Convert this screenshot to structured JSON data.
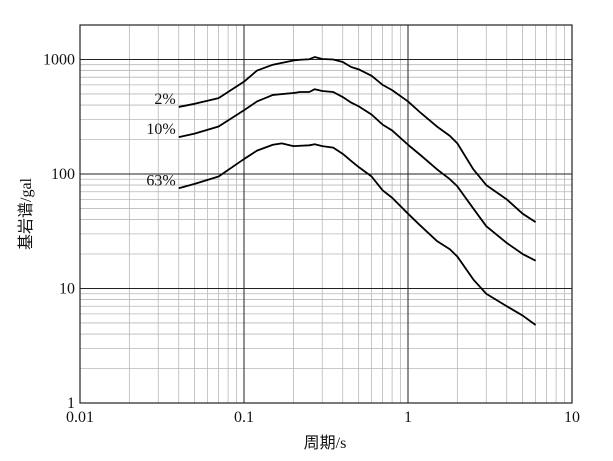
{
  "chart_data": {
    "type": "line",
    "xscale": "log",
    "yscale": "log",
    "xlim": [
      0.01,
      10
    ],
    "ylim": [
      1,
      2000
    ],
    "grid": true,
    "xlabel": "周期/s",
    "ylabel": "基岩谱/gal",
    "x_ticks": [
      {
        "value": 0.01,
        "label": "0.01"
      },
      {
        "value": 0.1,
        "label": "0.1"
      },
      {
        "value": 1,
        "label": "1"
      },
      {
        "value": 10,
        "label": "10"
      }
    ],
    "y_ticks": [
      {
        "value": 1,
        "label": "1"
      },
      {
        "value": 10,
        "label": "10"
      },
      {
        "value": 100,
        "label": "100"
      },
      {
        "value": 1000,
        "label": "1000"
      }
    ],
    "series": [
      {
        "name": "2%",
        "points": [
          [
            0.04,
            385
          ],
          [
            0.05,
            410
          ],
          [
            0.07,
            460
          ],
          [
            0.1,
            640
          ],
          [
            0.12,
            800
          ],
          [
            0.15,
            900
          ],
          [
            0.2,
            980
          ],
          [
            0.22,
            995
          ],
          [
            0.25,
            1005
          ],
          [
            0.27,
            1050
          ],
          [
            0.3,
            1010
          ],
          [
            0.35,
            1000
          ],
          [
            0.4,
            950
          ],
          [
            0.45,
            860
          ],
          [
            0.5,
            820
          ],
          [
            0.6,
            720
          ],
          [
            0.7,
            600
          ],
          [
            0.8,
            540
          ],
          [
            1.0,
            430
          ],
          [
            1.2,
            340
          ],
          [
            1.5,
            260
          ],
          [
            1.8,
            215
          ],
          [
            2.0,
            185
          ],
          [
            2.5,
            110
          ],
          [
            3.0,
            80
          ],
          [
            4.0,
            60
          ],
          [
            5.0,
            45
          ],
          [
            6.0,
            38
          ]
        ]
      },
      {
        "name": "10%",
        "points": [
          [
            0.04,
            210
          ],
          [
            0.05,
            225
          ],
          [
            0.07,
            260
          ],
          [
            0.1,
            360
          ],
          [
            0.12,
            430
          ],
          [
            0.15,
            490
          ],
          [
            0.2,
            510
          ],
          [
            0.22,
            520
          ],
          [
            0.25,
            520
          ],
          [
            0.27,
            550
          ],
          [
            0.3,
            530
          ],
          [
            0.35,
            520
          ],
          [
            0.4,
            470
          ],
          [
            0.45,
            420
          ],
          [
            0.5,
            390
          ],
          [
            0.6,
            330
          ],
          [
            0.7,
            270
          ],
          [
            0.8,
            240
          ],
          [
            1.0,
            180
          ],
          [
            1.2,
            145
          ],
          [
            1.5,
            110
          ],
          [
            1.8,
            90
          ],
          [
            2.0,
            78
          ],
          [
            2.5,
            50
          ],
          [
            3.0,
            35
          ],
          [
            4.0,
            25
          ],
          [
            5.0,
            20
          ],
          [
            6.0,
            17.5
          ]
        ]
      },
      {
        "name": "63%",
        "points": [
          [
            0.04,
            75
          ],
          [
            0.05,
            82
          ],
          [
            0.07,
            95
          ],
          [
            0.1,
            135
          ],
          [
            0.12,
            160
          ],
          [
            0.15,
            180
          ],
          [
            0.17,
            185
          ],
          [
            0.2,
            175
          ],
          [
            0.25,
            178
          ],
          [
            0.27,
            182
          ],
          [
            0.3,
            175
          ],
          [
            0.35,
            170
          ],
          [
            0.4,
            150
          ],
          [
            0.45,
            130
          ],
          [
            0.5,
            115
          ],
          [
            0.6,
            95
          ],
          [
            0.7,
            72
          ],
          [
            0.8,
            62
          ],
          [
            1.0,
            45
          ],
          [
            1.2,
            35
          ],
          [
            1.5,
            26
          ],
          [
            1.8,
            22
          ],
          [
            2.0,
            19
          ],
          [
            2.5,
            12
          ],
          [
            3.0,
            9
          ],
          [
            4.0,
            7
          ],
          [
            5.0,
            5.8
          ],
          [
            6.0,
            4.8
          ]
        ]
      }
    ]
  }
}
